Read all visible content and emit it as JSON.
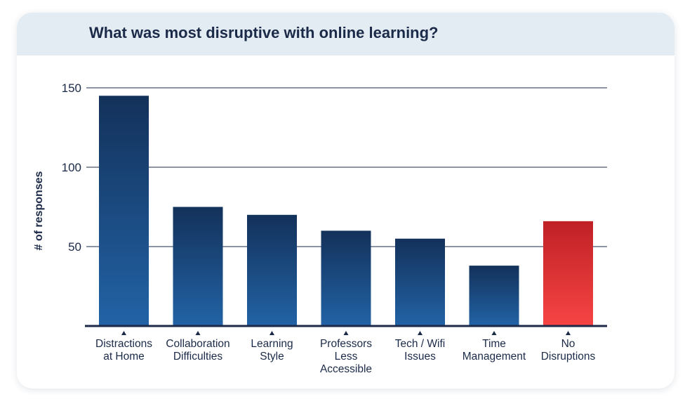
{
  "chart_data": {
    "type": "bar",
    "title": "What was most disruptive with online learning?",
    "xlabel": "",
    "ylabel": "# of responses",
    "ylim": [
      0,
      150
    ],
    "yticks": [
      50,
      100,
      150
    ],
    "grid": true,
    "categories": [
      "Distractions at Home",
      "Collaboration Difficulties",
      "Learning Style",
      "Professors Less Accessible",
      "Tech / Wifi Issues",
      "Time Management",
      "No Disruptions"
    ],
    "category_lines": [
      [
        "Distractions",
        "at Home"
      ],
      [
        "Collaboration",
        "Difficulties"
      ],
      [
        "Learning",
        "Style"
      ],
      [
        "Professors",
        "Less",
        "Accessible"
      ],
      [
        "Tech / Wifi",
        "Issues"
      ],
      [
        "Time",
        "Management"
      ],
      [
        "No",
        "Disruptions"
      ]
    ],
    "values": [
      145,
      75,
      70,
      60,
      55,
      38,
      66
    ],
    "bar_colors": [
      "blue",
      "blue",
      "blue",
      "blue",
      "blue",
      "blue",
      "red"
    ],
    "colors": {
      "blue_top": "#13315a",
      "blue_bottom": "#2263a6",
      "red_top": "#bf2126",
      "red_bottom": "#f74444",
      "grid": "#1b2a48",
      "text": "#1b2a48",
      "header_bg": "#e3ebf3"
    }
  }
}
